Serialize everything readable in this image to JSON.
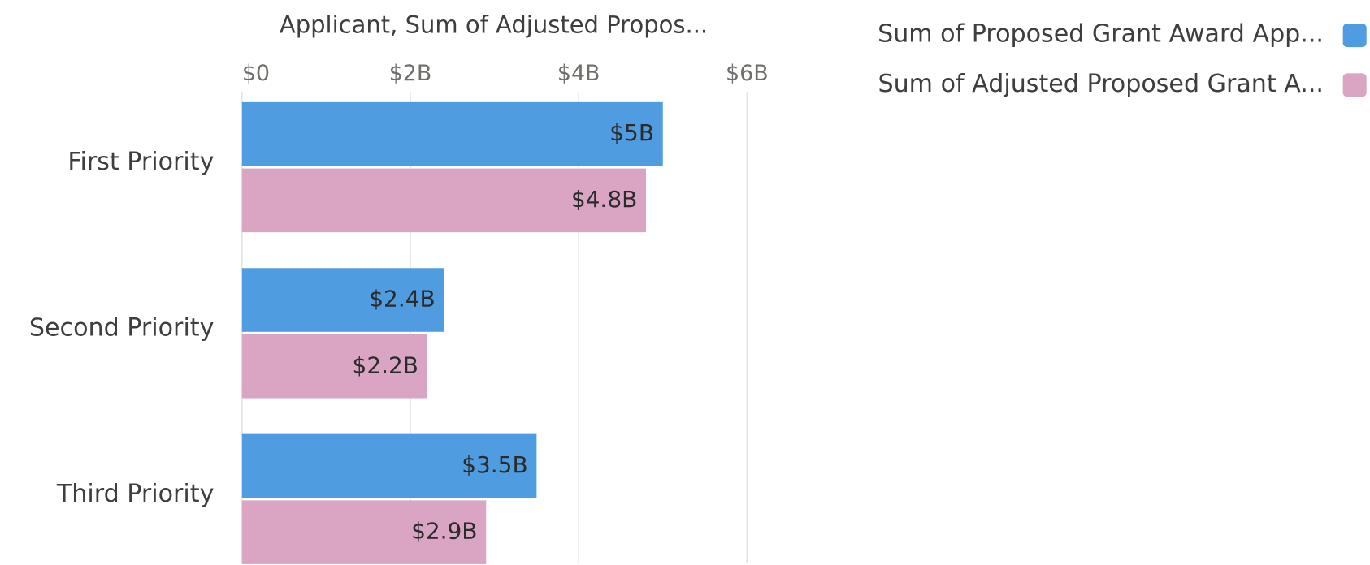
{
  "chart_data": {
    "type": "hbar",
    "title": "Applicant, Sum of Adjusted Propos...",
    "categories": [
      "First Priority",
      "Second Priority",
      "Third Priority"
    ],
    "series": [
      {
        "name": "Sum of Proposed Grant Award App...",
        "color": "#4f9de0",
        "values": [
          5000000000,
          2400000000,
          3500000000
        ],
        "value_labels": [
          "$5B",
          "$2.4B",
          "$3.5B"
        ]
      },
      {
        "name": "Sum of Adjusted Proposed Grant A...",
        "color": "#d9a5c3",
        "values": [
          4800000000,
          2200000000,
          2900000000
        ],
        "value_labels": [
          "$4.8B",
          "$2.2B",
          "$2.9B"
        ]
      }
    ],
    "xlim": [
      0,
      6000000000
    ],
    "xticks": [
      {
        "value": 0,
        "label": "$0"
      },
      {
        "value": 2000000000,
        "label": "$2B"
      },
      {
        "value": 4000000000,
        "label": "$4B"
      },
      {
        "value": 6000000000,
        "label": "$6B"
      }
    ],
    "grid": true,
    "legend": "top-right"
  }
}
